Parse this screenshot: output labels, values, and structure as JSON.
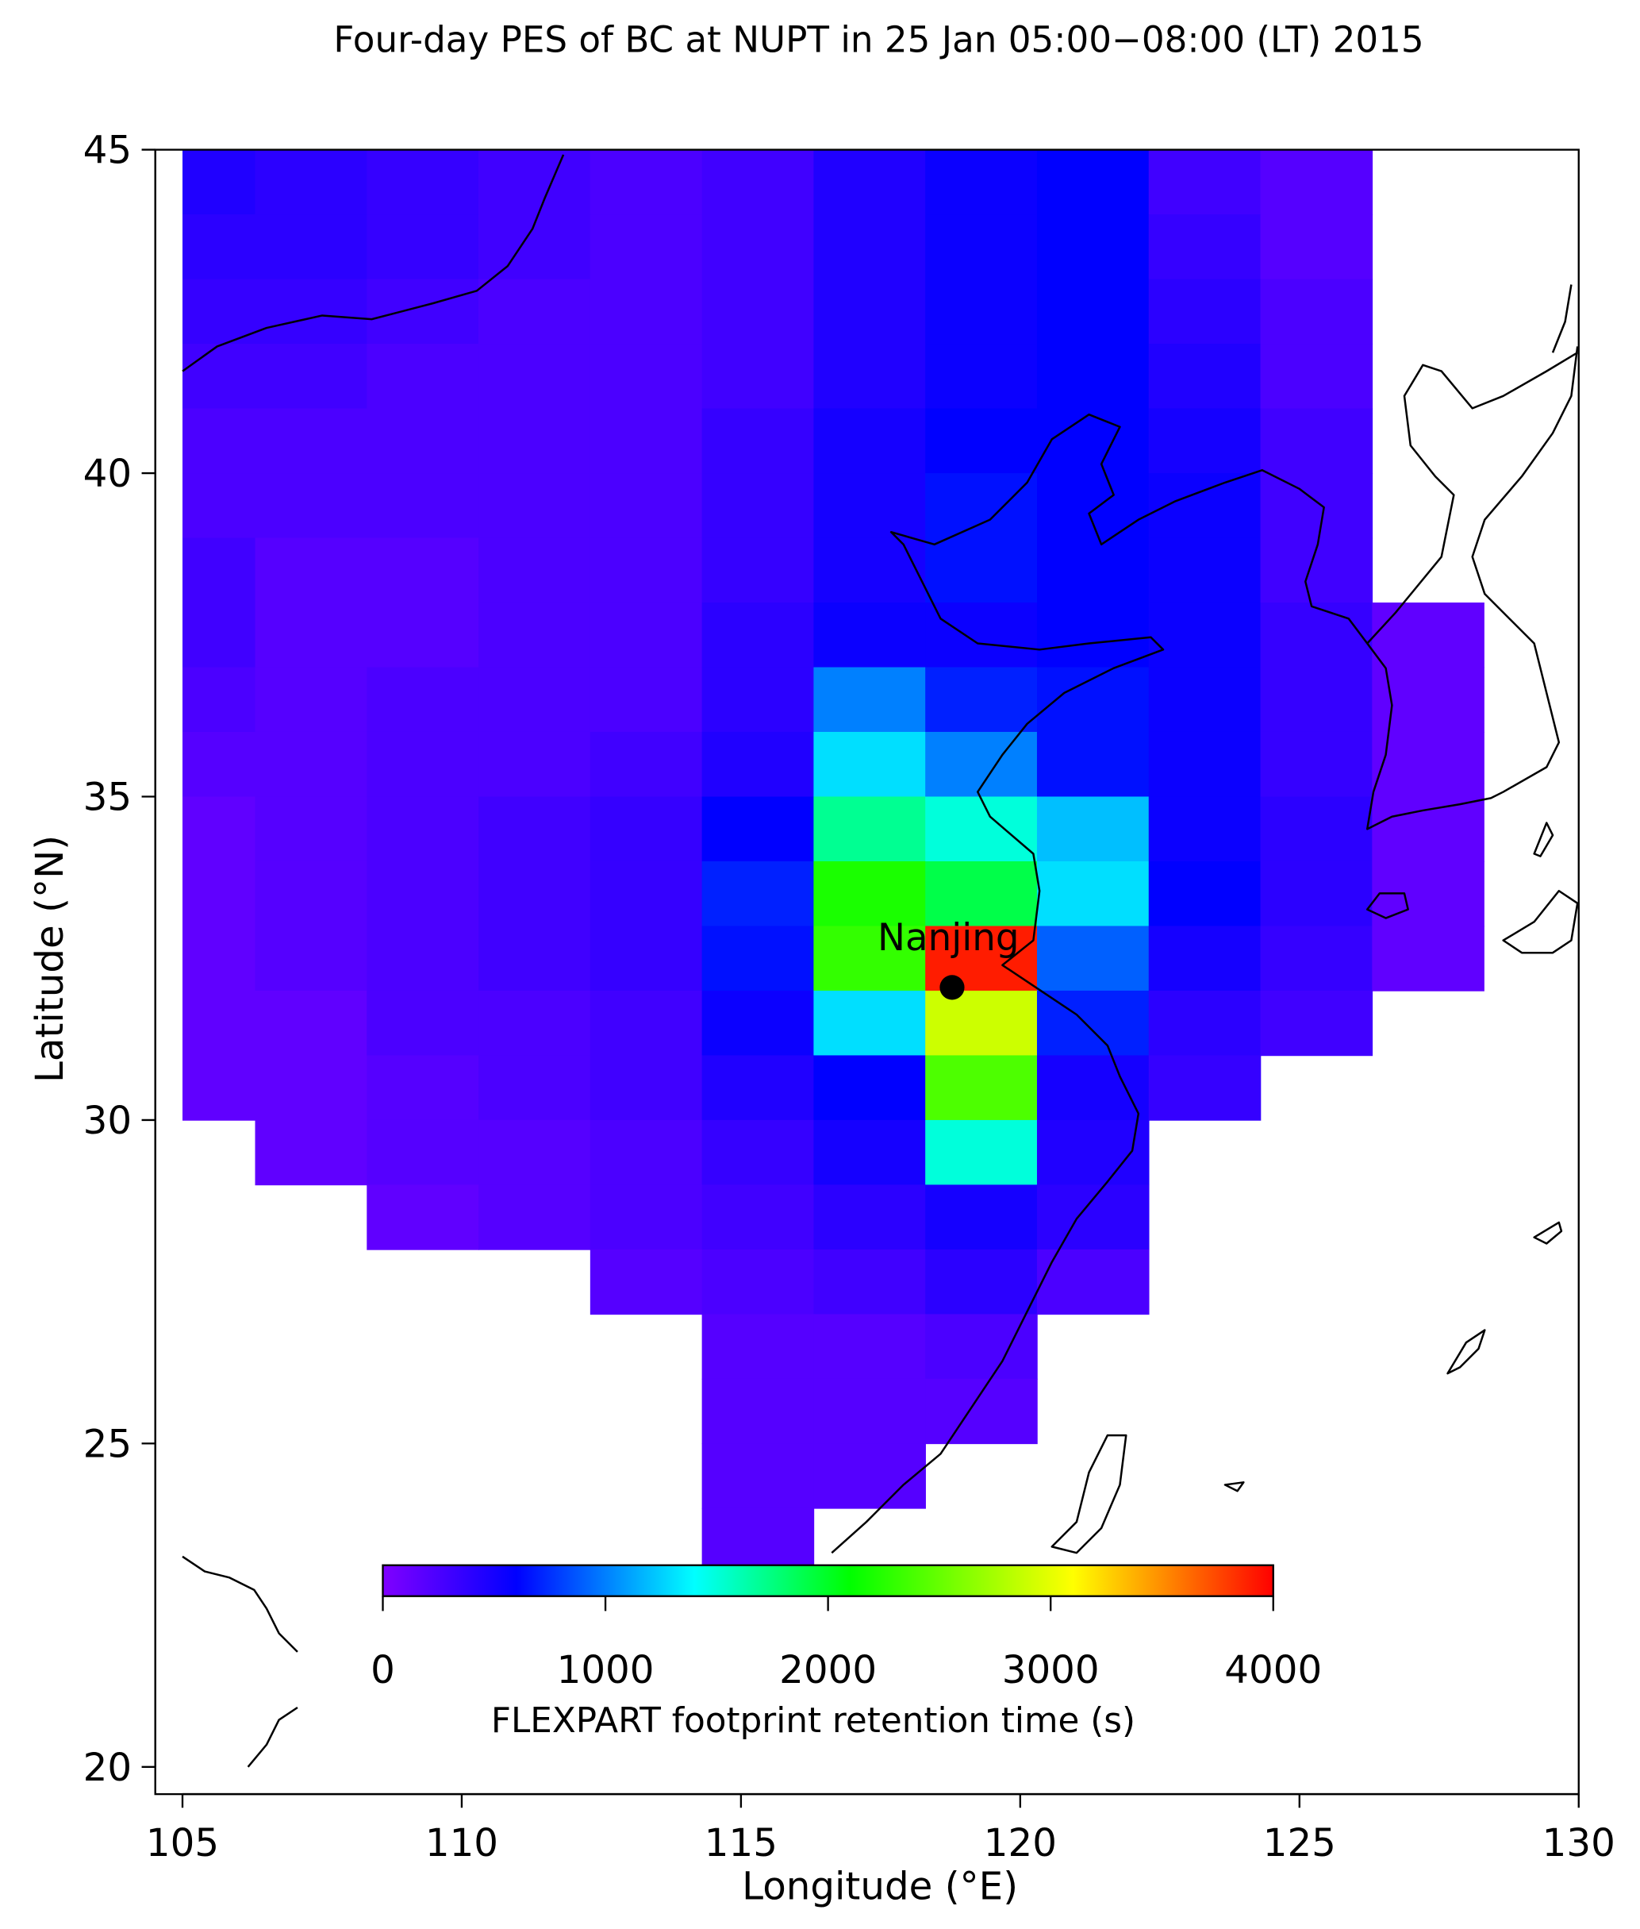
{
  "chart_data": {
    "type": "heatmap",
    "title": "Four-day PES of BC at NUPT in 25 Jan  05:00−08:00 (LT)  2015",
    "xlabel": "Longitude (°E)",
    "ylabel": "Latitude (°N)",
    "xlim": [
      105,
      130
    ],
    "ylim": [
      20,
      45
    ],
    "xticks": [
      105,
      110,
      115,
      120,
      125,
      130
    ],
    "yticks": [
      20,
      25,
      30,
      35,
      40,
      45
    ],
    "x_edges": [
      105,
      106.3,
      108.3,
      110.3,
      112.3,
      114.3,
      116.3,
      118.3,
      120.3,
      122.3,
      124.3,
      126.3,
      128.3
    ],
    "y_edges": [
      45,
      44,
      43,
      42,
      41,
      40,
      39,
      38,
      37,
      36,
      35,
      34,
      33,
      32,
      31,
      30,
      29,
      28,
      27,
      26,
      25,
      24,
      23
    ],
    "z": [
      [
        450,
        400,
        350,
        300,
        250,
        300,
        450,
        550,
        600,
        300,
        200,
        null
      ],
      [
        400,
        400,
        350,
        300,
        250,
        300,
        450,
        550,
        600,
        350,
        200,
        null
      ],
      [
        350,
        350,
        300,
        250,
        250,
        300,
        450,
        550,
        600,
        400,
        250,
        null
      ],
      [
        300,
        300,
        250,
        250,
        250,
        300,
        450,
        550,
        600,
        450,
        250,
        null
      ],
      [
        250,
        250,
        250,
        250,
        250,
        350,
        500,
        600,
        600,
        500,
        300,
        null
      ],
      [
        250,
        250,
        250,
        250,
        250,
        350,
        500,
        650,
        600,
        550,
        300,
        null
      ],
      [
        300,
        200,
        200,
        250,
        250,
        350,
        500,
        650,
        600,
        550,
        300,
        null
      ],
      [
        300,
        200,
        200,
        250,
        250,
        400,
        550,
        550,
        600,
        550,
        350,
        150
      ],
      [
        250,
        200,
        250,
        250,
        250,
        400,
        1000,
        700,
        650,
        550,
        350,
        150
      ],
      [
        200,
        200,
        250,
        250,
        300,
        450,
        1300,
        1000,
        650,
        550,
        350,
        150
      ],
      [
        150,
        200,
        250,
        300,
        350,
        600,
        1700,
        1500,
        1200,
        550,
        400,
        150
      ],
      [
        150,
        200,
        250,
        300,
        350,
        700,
        2200,
        1900,
        1300,
        600,
        400,
        150
      ],
      [
        150,
        200,
        250,
        300,
        350,
        650,
        2300,
        3900,
        900,
        500,
        350,
        150
      ],
      [
        150,
        150,
        250,
        250,
        300,
        550,
        1300,
        2900,
        700,
        400,
        300,
        null
      ],
      [
        150,
        150,
        200,
        250,
        300,
        450,
        600,
        2400,
        500,
        350,
        null,
        null
      ],
      [
        null,
        150,
        200,
        200,
        250,
        350,
        500,
        1500,
        450,
        null,
        null,
        null
      ],
      [
        null,
        null,
        150,
        200,
        250,
        300,
        400,
        500,
        400,
        null,
        null,
        null
      ],
      [
        null,
        null,
        null,
        null,
        200,
        250,
        300,
        400,
        250,
        null,
        null,
        null
      ],
      [
        null,
        null,
        null,
        null,
        null,
        200,
        200,
        250,
        null,
        null,
        null,
        null
      ],
      [
        null,
        null,
        null,
        null,
        null,
        200,
        200,
        200,
        null,
        null,
        null,
        null
      ],
      [
        null,
        null,
        null,
        null,
        null,
        200,
        200,
        null,
        null,
        null,
        null,
        null
      ],
      [
        null,
        null,
        null,
        null,
        null,
        200,
        null,
        null,
        null,
        null,
        null,
        null
      ]
    ],
    "colorscale": [
      [
        0,
        "#8000ff"
      ],
      [
        600,
        "#0000ff"
      ],
      [
        1400,
        "#00ffff"
      ],
      [
        2100,
        "#00ff00"
      ],
      [
        3100,
        "#ffff00"
      ],
      [
        4000,
        "#ff0000"
      ]
    ],
    "colorbar_label": "FLEXPART footprint retention time (s)",
    "colorbar_lim": [
      0,
      4000
    ],
    "colorbar_ticks": [
      0,
      1000,
      2000,
      3000,
      4000
    ],
    "annotations": [
      {
        "text": "Nanjing",
        "lon": 118.78,
        "lat": 32.05
      }
    ]
  }
}
